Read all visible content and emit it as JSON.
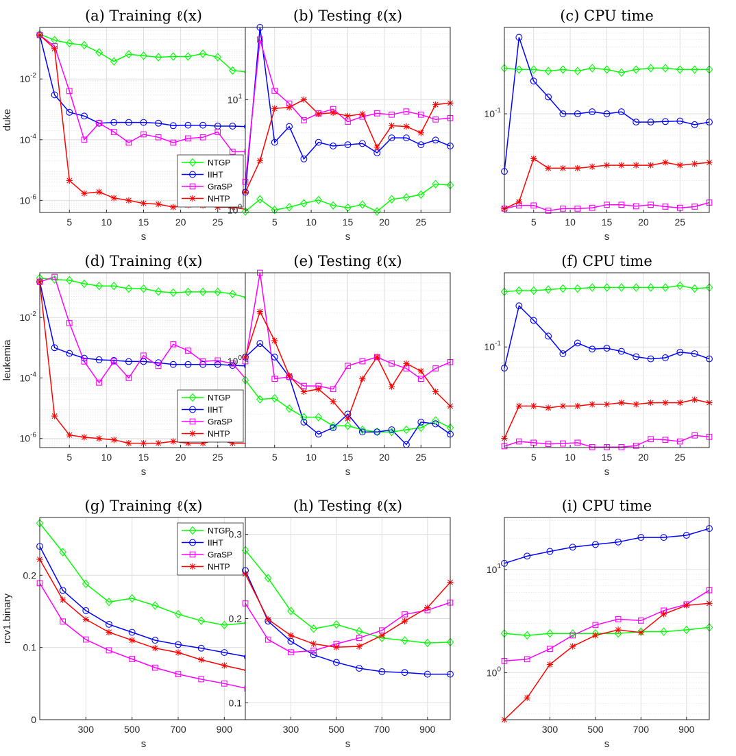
{
  "colors": {
    "NTGP": "#00ff00",
    "IIHT": "#0000ff",
    "GraSP": "#ff00ff",
    "NHTP": "#ff0000"
  },
  "markers": {
    "NTGP": "diamond",
    "IIHT": "circle",
    "GraSP": "square",
    "NHTP": "asterisk"
  },
  "chart_data": [
    {
      "id": "a",
      "type": "line",
      "title": "(a) Training ℓ(x)",
      "xlabel": "s",
      "ylabel": "duke",
      "yscale": "log",
      "xlim": [
        1,
        29
      ],
      "ylim": [
        4e-07,
        0.5
      ],
      "xticks": [
        5,
        10,
        15,
        20,
        25
      ],
      "yticks": [
        0.01,
        0.0001,
        1e-06
      ],
      "ytick_labels": [
        [
          "10",
          "-2"
        ],
        [
          "10",
          "-4"
        ],
        [
          "10",
          "-6"
        ]
      ],
      "grid": true,
      "legend": "bottom-right",
      "x": [
        1,
        3,
        5,
        7,
        9,
        11,
        13,
        15,
        17,
        19,
        21,
        23,
        25,
        27,
        29
      ],
      "series": [
        {
          "name": "NTGP",
          "values": [
            0.3,
            0.19,
            0.15,
            0.13,
            0.075,
            0.038,
            0.065,
            0.058,
            0.052,
            0.055,
            0.055,
            0.068,
            0.052,
            0.019,
            0.017
          ]
        },
        {
          "name": "IIHT",
          "values": [
            0.28,
            0.003,
            0.0008,
            0.0006,
            0.00035,
            0.00037,
            0.00037,
            0.00037,
            0.00035,
            0.00029,
            0.0003,
            0.0003,
            0.00028,
            0.00028,
            0.00027
          ]
        },
        {
          "name": "GraSP",
          "values": [
            0.28,
            0.12,
            0.004,
            0.0001,
            0.00035,
            0.00018,
            8e-05,
            0.00015,
            0.00012,
            8e-05,
            0.00011,
            0.00012,
            0.00018,
            4e-05,
            4e-05
          ]
        },
        {
          "name": "NHTP",
          "values": [
            0.28,
            0.1,
            4.5e-06,
            1.7e-06,
            1.9e-06,
            1.2e-06,
            1e-06,
            8e-07,
            7.5e-07,
            6e-07,
            7e-07,
            6.8e-07,
            6e-07,
            6e-07,
            5e-07
          ]
        }
      ]
    },
    {
      "id": "b",
      "type": "line",
      "title": "(b) Testing ℓ(x)",
      "xlabel": "s",
      "ylabel": "",
      "yscale": "log",
      "xlim": [
        1,
        29
      ],
      "ylim": [
        0.95,
        45
      ],
      "xticks": [
        5,
        10,
        15,
        20,
        25
      ],
      "yticks": [
        1,
        10
      ],
      "ytick_labels": [
        [
          "10",
          "0"
        ],
        [
          "10",
          "1"
        ]
      ],
      "grid": true,
      "legend": "none",
      "x": [
        1,
        3,
        5,
        7,
        9,
        11,
        13,
        15,
        17,
        19,
        21,
        23,
        25,
        27,
        29
      ],
      "series": [
        {
          "name": "NTGP",
          "values": [
            0.97,
            1.25,
            1.0,
            1.06,
            1.15,
            1.23,
            1.1,
            1.05,
            1.12,
            0.97,
            1.25,
            1.3,
            1.38,
            1.72,
            1.68
          ]
        },
        {
          "name": "IIHT",
          "values": [
            1.45,
            45,
            4.1,
            5.7,
            2.9,
            4.1,
            3.8,
            3.9,
            4.0,
            3.3,
            4.5,
            4.5,
            3.9,
            4.3,
            3.8
          ]
        },
        {
          "name": "GraSP",
          "values": [
            1.8,
            35,
            12,
            9.2,
            6.5,
            7.5,
            8.2,
            6.3,
            7.0,
            7.5,
            7.3,
            7.8,
            7.3,
            6.6,
            6.8
          ]
        },
        {
          "name": "NHTP",
          "values": [
            1.45,
            2.8,
            8.3,
            8.5,
            10,
            7.4,
            7.6,
            7.1,
            7.4,
            3.7,
            5.8,
            5.7,
            5.0,
            9.0,
            9.3
          ]
        }
      ]
    },
    {
      "id": "c",
      "type": "line",
      "title": "(c) CPU time",
      "xlabel": "s",
      "ylabel": "",
      "yscale": "log",
      "xlim": [
        1,
        29
      ],
      "ylim": [
        0.0093,
        0.8
      ],
      "xticks": [
        5,
        10,
        15,
        20,
        25
      ],
      "yticks": [
        0.1
      ],
      "ytick_labels": [
        [
          "10",
          "-1"
        ]
      ],
      "grid": true,
      "legend": "none",
      "x": [
        1,
        3,
        5,
        7,
        9,
        11,
        13,
        15,
        17,
        19,
        21,
        23,
        25,
        27,
        29
      ],
      "series": [
        {
          "name": "NTGP",
          "values": [
            0.3,
            0.29,
            0.29,
            0.28,
            0.29,
            0.28,
            0.3,
            0.29,
            0.27,
            0.29,
            0.3,
            0.3,
            0.29,
            0.29,
            0.29
          ]
        },
        {
          "name": "IIHT",
          "values": [
            0.025,
            0.63,
            0.22,
            0.15,
            0.1,
            0.1,
            0.105,
            0.1,
            0.105,
            0.082,
            0.082,
            0.083,
            0.084,
            0.077,
            0.082
          ]
        },
        {
          "name": "GraSP",
          "values": [
            0.0102,
            0.011,
            0.011,
            0.0097,
            0.0102,
            0.0102,
            0.0104,
            0.0112,
            0.0112,
            0.0108,
            0.0112,
            0.0107,
            0.0104,
            0.0107,
            0.0118
          ]
        },
        {
          "name": "NHTP",
          "values": [
            0.0102,
            0.012,
            0.034,
            0.027,
            0.027,
            0.027,
            0.028,
            0.029,
            0.029,
            0.029,
            0.029,
            0.031,
            0.029,
            0.03,
            0.031
          ]
        }
      ]
    },
    {
      "id": "d",
      "type": "line",
      "title": "(d) Training ℓ(x)",
      "xlabel": "s",
      "ylabel": "leukemia",
      "yscale": "log",
      "xlim": [
        1,
        29
      ],
      "ylim": [
        5e-07,
        0.3
      ],
      "xticks": [
        5,
        10,
        15,
        20,
        25
      ],
      "yticks": [
        0.01,
        0.0001,
        1e-06
      ],
      "ytick_labels": [
        [
          "10",
          "-2"
        ],
        [
          "10",
          "-4"
        ],
        [
          "10",
          "-6"
        ]
      ],
      "grid": true,
      "legend": "bottom-right",
      "x": [
        1,
        3,
        5,
        7,
        9,
        11,
        13,
        15,
        17,
        19,
        21,
        23,
        25,
        27,
        29
      ],
      "series": [
        {
          "name": "NTGP",
          "values": [
            0.2,
            0.18,
            0.17,
            0.13,
            0.11,
            0.11,
            0.09,
            0.09,
            0.072,
            0.066,
            0.07,
            0.07,
            0.07,
            0.06,
            0.045
          ]
        },
        {
          "name": "IIHT",
          "values": [
            0.15,
            0.001,
            0.00065,
            0.00045,
            0.0004,
            0.00038,
            0.00035,
            0.00035,
            0.00032,
            0.00028,
            0.00028,
            0.00028,
            0.00028,
            0.00026,
            0.00025
          ]
        },
        {
          "name": "GraSP",
          "values": [
            0.15,
            0.22,
            0.0065,
            0.00035,
            7e-05,
            0.00035,
            0.0001,
            0.00055,
            0.00025,
            0.0013,
            0.0008,
            0.00035,
            0.00038,
            0.0003,
            8e-05
          ]
        },
        {
          "name": "NHTP",
          "values": [
            0.15,
            5.5e-06,
            1.3e-06,
            1.1e-06,
            1e-06,
            9e-07,
            7e-07,
            7e-07,
            7e-07,
            8e-07,
            7e-07,
            7e-07,
            9e-07,
            7e-07,
            7e-07
          ]
        }
      ]
    },
    {
      "id": "e",
      "type": "line",
      "title": "(e) Testing ℓ(x)",
      "xlabel": "s",
      "ylabel": "",
      "yscale": "log",
      "xlim": [
        1,
        29
      ],
      "ylim": [
        0.14,
        7.5
      ],
      "xticks": [
        5,
        10,
        15,
        20,
        25
      ],
      "yticks": [
        1
      ],
      "ytick_labels": [
        [
          "10",
          "0"
        ]
      ],
      "grid": true,
      "legend": "none",
      "x": [
        1,
        3,
        5,
        7,
        9,
        11,
        13,
        15,
        17,
        19,
        21,
        23,
        25,
        27,
        29
      ],
      "series": [
        {
          "name": "NTGP",
          "values": [
            0.65,
            0.42,
            0.43,
            0.34,
            0.28,
            0.28,
            0.23,
            0.23,
            0.21,
            0.2,
            0.2,
            0.21,
            0.22,
            0.26,
            0.22
          ]
        },
        {
          "name": "IIHT",
          "values": [
            1.1,
            1.5,
            1.1,
            0.7,
            0.25,
            0.19,
            0.22,
            0.3,
            0.2,
            0.2,
            0.21,
            0.15,
            0.25,
            0.24,
            0.19
          ]
        },
        {
          "name": "GraSP",
          "values": [
            1.0,
            7.5,
            0.67,
            0.7,
            0.57,
            0.57,
            0.53,
            0.9,
            1.0,
            1.1,
            0.95,
            0.85,
            0.67,
            0.85,
            0.98
          ]
        },
        {
          "name": "NHTP",
          "values": [
            1.1,
            3.1,
            1.6,
            0.72,
            0.5,
            0.53,
            0.4,
            0.27,
            0.67,
            1.1,
            0.56,
            0.95,
            0.8,
            0.5,
            0.36
          ]
        }
      ]
    },
    {
      "id": "f",
      "type": "line",
      "title": "(f) CPU time",
      "xlabel": "s",
      "ylabel": "",
      "yscale": "log",
      "xlim": [
        1,
        29
      ],
      "ylim": [
        0.0088,
        0.6
      ],
      "xticks": [
        5,
        10,
        15,
        20,
        25
      ],
      "yticks": [
        0.1
      ],
      "ytick_labels": [
        [
          "10",
          "-1"
        ]
      ],
      "grid": true,
      "legend": "none",
      "x": [
        1,
        3,
        5,
        7,
        9,
        11,
        13,
        15,
        17,
        19,
        21,
        23,
        25,
        27,
        29
      ],
      "series": [
        {
          "name": "NTGP",
          "values": [
            0.38,
            0.39,
            0.39,
            0.4,
            0.41,
            0.41,
            0.42,
            0.42,
            0.42,
            0.42,
            0.42,
            0.42,
            0.44,
            0.41,
            0.42
          ]
        },
        {
          "name": "IIHT",
          "values": [
            0.06,
            0.27,
            0.19,
            0.13,
            0.085,
            0.11,
            0.095,
            0.097,
            0.09,
            0.079,
            0.075,
            0.077,
            0.088,
            0.085,
            0.075
          ]
        },
        {
          "name": "GraSP",
          "values": [
            0.0091,
            0.0102,
            0.0099,
            0.0096,
            0.0097,
            0.0099,
            0.0089,
            0.0089,
            0.0089,
            0.0092,
            0.0108,
            0.0106,
            0.0102,
            0.0118,
            0.0114
          ]
        },
        {
          "name": "NHTP",
          "values": [
            0.011,
            0.024,
            0.024,
            0.023,
            0.024,
            0.024,
            0.025,
            0.025,
            0.026,
            0.025,
            0.026,
            0.026,
            0.026,
            0.028,
            0.026
          ]
        }
      ]
    },
    {
      "id": "g",
      "type": "line",
      "title": "(g) Training ℓ(x)",
      "xlabel": "s",
      "ylabel": "rcv1.binary",
      "yscale": "linear",
      "xlim": [
        100,
        1000
      ],
      "ylim": [
        0,
        0.28
      ],
      "xticks": [
        300,
        500,
        700,
        900
      ],
      "yticks": [
        0,
        0.1,
        0.2
      ],
      "ytick_labels": [
        [
          "0",
          ""
        ],
        [
          "0.1",
          ""
        ],
        [
          "0.2",
          ""
        ]
      ],
      "grid": true,
      "legend": "top-right",
      "x": [
        100,
        200,
        300,
        400,
        500,
        600,
        700,
        800,
        900,
        1000
      ],
      "series": [
        {
          "name": "NTGP",
          "values": [
            0.272,
            0.232,
            0.188,
            0.163,
            0.168,
            0.158,
            0.146,
            0.137,
            0.131,
            0.134
          ]
        },
        {
          "name": "IIHT",
          "values": [
            0.24,
            0.179,
            0.151,
            0.132,
            0.121,
            0.11,
            0.104,
            0.099,
            0.093,
            0.087
          ]
        },
        {
          "name": "GraSP",
          "values": [
            0.189,
            0.136,
            0.111,
            0.096,
            0.084,
            0.072,
            0.063,
            0.056,
            0.05,
            0.043
          ]
        },
        {
          "name": "NHTP",
          "values": [
            0.222,
            0.166,
            0.139,
            0.121,
            0.11,
            0.099,
            0.093,
            0.083,
            0.075,
            0.068
          ]
        }
      ]
    },
    {
      "id": "h",
      "type": "line",
      "title": "(h) Testing ℓ(x)",
      "xlabel": "s",
      "ylabel": "",
      "yscale": "linear",
      "xlim": [
        100,
        1000
      ],
      "ylim": [
        0.08,
        0.32
      ],
      "xticks": [
        300,
        500,
        700,
        900
      ],
      "yticks": [
        0.1,
        0.2,
        0.3
      ],
      "ytick_labels": [
        [
          "0.1",
          ""
        ],
        [
          "0.2",
          ""
        ],
        [
          "0.3",
          ""
        ]
      ],
      "grid": true,
      "legend": "none",
      "x": [
        100,
        200,
        300,
        400,
        500,
        600,
        700,
        800,
        900,
        1000
      ],
      "series": [
        {
          "name": "NTGP",
          "values": [
            0.281,
            0.248,
            0.209,
            0.188,
            0.193,
            0.185,
            0.177,
            0.174,
            0.171,
            0.172
          ]
        },
        {
          "name": "IIHT",
          "values": [
            0.257,
            0.197,
            0.173,
            0.157,
            0.148,
            0.141,
            0.137,
            0.136,
            0.134,
            0.134
          ]
        },
        {
          "name": "GraSP",
          "values": [
            0.218,
            0.175,
            0.16,
            0.162,
            0.17,
            0.177,
            0.186,
            0.205,
            0.21,
            0.219
          ]
        },
        {
          "name": "NHTP",
          "values": [
            0.253,
            0.199,
            0.18,
            0.17,
            0.166,
            0.167,
            0.18,
            0.197,
            0.213,
            0.243
          ]
        }
      ]
    },
    {
      "id": "i",
      "type": "line",
      "title": "(i) CPU time",
      "xlabel": "s",
      "ylabel": "",
      "yscale": "log",
      "xlim": [
        100,
        1000
      ],
      "ylim": [
        0.35,
        32
      ],
      "xticks": [
        300,
        500,
        700,
        900
      ],
      "yticks": [
        1,
        10
      ],
      "ytick_labels": [
        [
          "10",
          "0"
        ],
        [
          "10",
          "1"
        ]
      ],
      "grid": true,
      "legend": "none",
      "x": [
        100,
        200,
        300,
        400,
        500,
        600,
        700,
        800,
        900,
        1000
      ],
      "series": [
        {
          "name": "NTGP",
          "values": [
            2.4,
            2.3,
            2.4,
            2.4,
            2.4,
            2.4,
            2.5,
            2.5,
            2.6,
            2.75
          ]
        },
        {
          "name": "IIHT",
          "values": [
            11.5,
            13.5,
            15,
            16.5,
            17.5,
            18.5,
            20.5,
            20.5,
            21.5,
            25
          ]
        },
        {
          "name": "GraSP",
          "values": [
            1.3,
            1.35,
            1.7,
            2.3,
            2.9,
            3.3,
            3.2,
            4.0,
            4.6,
            6.3
          ]
        },
        {
          "name": "NHTP",
          "values": [
            0.35,
            0.57,
            1.2,
            1.8,
            2.3,
            2.6,
            2.45,
            3.7,
            4.5,
            4.7
          ]
        }
      ]
    }
  ]
}
